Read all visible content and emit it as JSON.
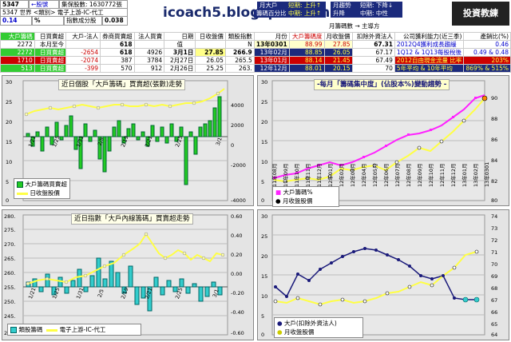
{
  "header": {
    "code": "5347",
    "back_link": "←股號",
    "sub1": "集保股數: 1630772張",
    "sub2": "5347 世界 <類別> 電子上游-IC-代工",
    "ratio": "0.14",
    "pct": "%",
    "lbl_ratio": "指數成分股",
    "ratio2": "0.038",
    "site_title": "icoach5.blogspot.com",
    "b1": "月大戶",
    "b2": "籌碼百分比",
    "b3": "短期: 上升↑",
    "b4": "中期: 上升↑",
    "b5": "月趨勢",
    "b6": "升降",
    "b7": "短期: 下降↓",
    "b8": "中期: 中性",
    "logo": "投資教練",
    "sub_right": "月籌碼數 → 主導方"
  },
  "table": {
    "head": [
      "大戶籌碼",
      "日買賣超",
      "大戶-法人",
      "券商買賣超",
      "法人買賣",
      "日期",
      "日收盤價",
      "類股指數",
      "月份",
      "大戶籌碼度",
      "月收盤價",
      "扣除外資法人",
      "公司獲利能力(近三季)",
      "產銷比(%)"
    ],
    "rows": [
      [
        "2272",
        "本月至今",
        "",
        "618",
        "",
        "值",
        "",
        "N",
        "13年0301",
        "88.99",
        "27.85",
        "67.31",
        "2012Q4獲利成長趨緩",
        "0.46"
      ],
      [
        "2272",
        "日買賣超",
        "-2654",
        "618",
        "4926",
        "3月1日",
        "27.85",
        "266.9",
        "13年02月",
        "88.85",
        "26.05",
        "67.17",
        "1Q12 & 1Q13每股稅後",
        "0.49 & 0.48"
      ],
      [
        "1710",
        "日買賣超",
        "-2074",
        "387",
        "3784",
        "2月27日",
        "26.05",
        "265.5",
        "13年01月",
        "88.14",
        "21.45",
        "67.49",
        "2012自由現金流量 比率",
        "203%"
      ],
      [
        "513",
        "日買賣超",
        "-399",
        "570",
        "912",
        "2月26日",
        "25.25",
        "263.",
        "12年12月",
        "88.01",
        "20.15",
        "70",
        "5年平均 & 10年平均",
        "869% & 515%"
      ]
    ]
  },
  "panel1": {
    "title": "近日個股「大戶籌碼」買賣超(張數)走勢",
    "legend_bar": "大戶籌碼買賣超",
    "legend_line": "日收盤股價",
    "y_left": [
      "30",
      "25",
      "20",
      "15",
      "10",
      "5",
      "0"
    ],
    "y_right": [
      "4000",
      "2000",
      "0",
      "-2000",
      "-4000"
    ],
    "x_labels": [
      "1/21",
      "1/25",
      "1/31",
      "2/5",
      "2/19",
      "2/21",
      "2/25",
      "3/1"
    ]
  },
  "panel2": {
    "title": "近日指數「大戶內線籌碼」買賣超走勢",
    "legend_bar": "類股籌碼",
    "legend_line": "電子上游-IC-代工",
    "y_left": [
      "280.",
      "275.",
      "270.",
      "265.",
      "260.",
      "255.",
      "250.",
      "245.",
      "240."
    ],
    "y_right": [
      "0.60",
      "0.40",
      "0.20",
      "0.00",
      "-0.20",
      "-0.40",
      "-0.60"
    ],
    "x_labels": [
      "1/21",
      "1/25",
      "1/31",
      "2/5",
      "2/19",
      "2/21",
      "2/25",
      "3/1"
    ]
  },
  "panel3": {
    "title": "-每月「籌碼集中度」(佔股本%)變動趨勢 -",
    "legend_a": "大戶籌碼%",
    "legend_b": "月收盤股價",
    "y_left": [
      "30",
      "25",
      "20",
      "15",
      "10",
      "5",
      "0"
    ],
    "y_right": [
      "90",
      "88",
      "86",
      "84",
      "82",
      "80"
    ]
  },
  "panel4": {
    "legend_a": "大戶(扣除外資法人)",
    "legend_b": "月收盤股價",
    "y_left": [
      "30",
      "25",
      "20",
      "15",
      "10",
      "5",
      "0"
    ],
    "y_right": [
      "74",
      "73",
      "72",
      "71",
      "70",
      "69",
      "68",
      "67",
      "66",
      "65",
      "64"
    ],
    "x_labels": [
      "11年08月",
      "11年09月",
      "11年10月",
      "11年11月",
      "11年12月",
      "12年01月",
      "12年02月",
      "12年03月",
      "12年04月",
      "12年05月",
      "12年06月",
      "12年07月",
      "12年08月",
      "12年09月",
      "12年10月",
      "12年11月",
      "12年12月",
      "13年01月",
      "13年02月",
      "13年0301"
    ]
  },
  "colors": {
    "bar_green": "#22cc22",
    "bar_cyan": "#33cccc",
    "line_yellow": "#ffff44",
    "magenta": "#ff22ff",
    "navy": "#1a1a7a"
  }
}
